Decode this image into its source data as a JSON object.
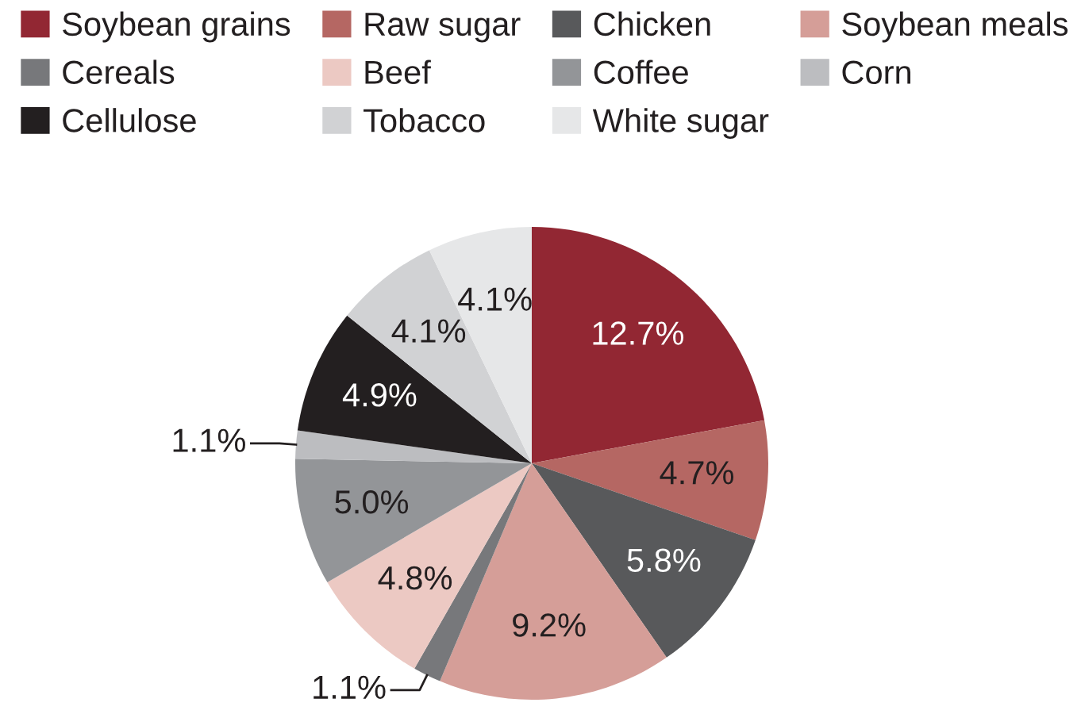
{
  "chart_data": {
    "type": "pie",
    "categories": [
      "Soybean grains",
      "Raw sugar",
      "Chicken",
      "Soybean meals",
      "Cereals",
      "Beef",
      "Coffee",
      "Corn",
      "Cellulose",
      "Tobacco",
      "White sugar"
    ],
    "values": [
      12.7,
      4.7,
      5.8,
      9.2,
      1.1,
      4.8,
      5.0,
      1.1,
      4.9,
      4.1,
      4.1
    ],
    "value_labels": [
      "12.7%",
      "4.7%",
      "5.8%",
      "9.2%",
      "1.1%",
      "4.8%",
      "5.0%",
      "1.1%",
      "4.9%",
      "4.1%",
      "4.1%"
    ],
    "colors": [
      "#922733",
      "#b56763",
      "#58595b",
      "#d59e98",
      "#77787b",
      "#ecc9c3",
      "#939598",
      "#bcbdc0",
      "#231f20",
      "#d1d2d4",
      "#e6e7e8"
    ],
    "legend": "top"
  }
}
